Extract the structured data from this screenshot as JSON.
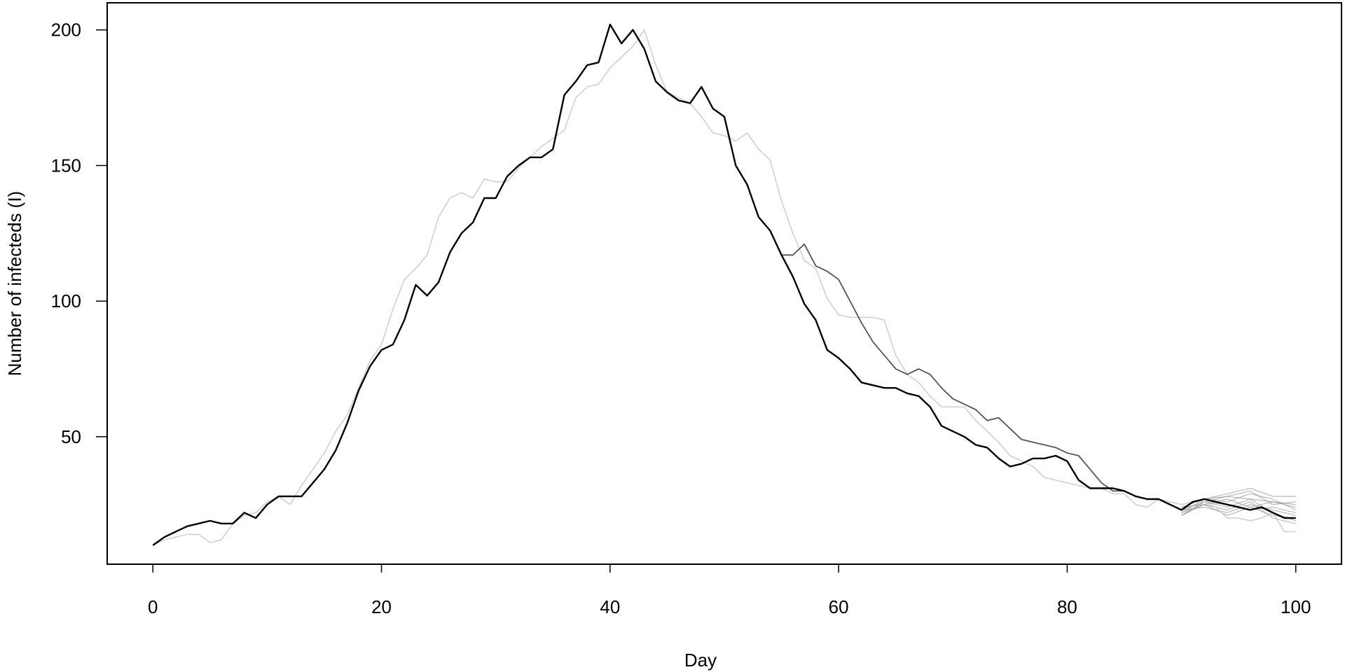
{
  "chart_data": {
    "type": "line",
    "title": "",
    "xlabel": "Day",
    "ylabel": "Number of infecteds (I)",
    "xlim": [
      -4,
      104
    ],
    "ylim": [
      3,
      210
    ],
    "xticks": [
      0,
      20,
      40,
      60,
      80,
      100
    ],
    "yticks": [
      50,
      100,
      150,
      200
    ],
    "grid": false,
    "legend": "none",
    "colors": {
      "main": "#000000",
      "light": "#d0d0d0",
      "mid": "#555555",
      "faint": "#9a9a9a"
    },
    "series": [
      {
        "style": "main",
        "x": [
          0,
          1,
          2,
          3,
          4,
          5,
          6,
          7,
          8,
          9,
          10,
          11,
          12,
          13,
          14,
          15,
          16,
          17,
          18,
          19,
          20,
          21,
          22,
          23,
          24,
          25,
          26,
          27,
          28,
          29,
          30,
          31,
          32,
          33,
          34,
          35,
          36,
          37,
          38,
          39,
          40,
          41,
          42,
          43,
          44,
          45,
          46,
          47,
          48,
          49,
          50,
          51,
          52,
          53,
          54,
          55,
          56,
          57,
          58,
          59,
          60,
          61,
          62,
          63,
          64,
          65,
          66,
          67,
          68,
          69,
          70,
          71,
          72,
          73,
          74,
          75,
          76,
          77,
          78,
          79,
          80,
          81,
          82,
          83,
          84,
          85,
          86,
          87,
          88,
          89,
          90,
          91,
          92,
          93,
          94,
          95,
          96,
          97,
          98,
          99,
          100
        ],
        "y": [
          10,
          13,
          15,
          17,
          18,
          19,
          18,
          18,
          22,
          20,
          25,
          28,
          28,
          28,
          33,
          38,
          45,
          55,
          67,
          76,
          82,
          84,
          93,
          106,
          102,
          107,
          118,
          125,
          129,
          138,
          138,
          146,
          150,
          153,
          153,
          156,
          176,
          181,
          187,
          188,
          202,
          195,
          200,
          193,
          181,
          177,
          174,
          173,
          179,
          171,
          168,
          150,
          143,
          131,
          126,
          117,
          109,
          99,
          93,
          82,
          79,
          75,
          70,
          69,
          68,
          68,
          66,
          65,
          61,
          54,
          52,
          50,
          47,
          46,
          42,
          39,
          40,
          42,
          42,
          43,
          41,
          34,
          31,
          31,
          31,
          30,
          28,
          27,
          27,
          25,
          23,
          26,
          27,
          26,
          25,
          24,
          23,
          24,
          22,
          20,
          20
        ]
      },
      {
        "style": "light",
        "x": [
          0,
          1,
          2,
          3,
          4,
          5,
          6,
          7,
          8,
          9,
          10,
          11,
          12,
          13,
          14,
          15,
          16,
          17,
          18,
          19,
          20,
          21,
          22,
          23,
          24,
          25,
          26,
          27,
          28,
          29,
          30,
          31,
          32,
          33,
          34,
          35,
          36,
          37,
          38,
          39,
          40,
          41,
          42,
          43,
          44,
          45,
          46,
          47,
          48,
          49,
          50,
          51,
          52,
          53,
          54,
          55,
          56,
          57,
          58,
          59,
          60,
          61,
          62,
          63,
          64,
          65,
          66,
          67,
          68,
          69,
          70,
          71,
          72,
          73,
          74,
          75,
          76,
          77,
          78,
          79,
          80,
          81,
          82,
          83,
          84,
          85,
          86,
          87,
          88,
          89,
          90,
          91,
          92,
          93,
          94,
          95,
          96,
          97,
          98,
          99,
          100
        ],
        "y": [
          10,
          12,
          13,
          14,
          14,
          11,
          12,
          18,
          21,
          22,
          26,
          28,
          25,
          32,
          38,
          44,
          52,
          58,
          68,
          78,
          84,
          97,
          108,
          112,
          117,
          131,
          138,
          140,
          138,
          145,
          144,
          144,
          149,
          153,
          157,
          160,
          163,
          175,
          179,
          180,
          186,
          190,
          194,
          200,
          187,
          177,
          175,
          173,
          168,
          162,
          161,
          159,
          162,
          156,
          152,
          137,
          125,
          115,
          112,
          101,
          95,
          94,
          94,
          94,
          93,
          80,
          73,
          70,
          65,
          61,
          61,
          61,
          56,
          52,
          48,
          43,
          41,
          39,
          35,
          34,
          33,
          32,
          31,
          31,
          29,
          29,
          25,
          24,
          27,
          26,
          25,
          26,
          26,
          24,
          20,
          20,
          19,
          20,
          22,
          15,
          15
        ]
      },
      {
        "style": "mid",
        "x": [
          55,
          56,
          57,
          58,
          59,
          60,
          61,
          62,
          63,
          64,
          65,
          66,
          67,
          68,
          69,
          70,
          71,
          72,
          73,
          74,
          75,
          76,
          77,
          78,
          79,
          80,
          81,
          82,
          83,
          84,
          85,
          86,
          87,
          88,
          89,
          90,
          91,
          92,
          93,
          94,
          95,
          96,
          97,
          98,
          99,
          100
        ],
        "y": [
          117,
          117,
          121,
          113,
          111,
          108,
          100,
          92,
          85,
          80,
          75,
          73,
          75,
          73,
          68,
          64,
          62,
          60,
          56,
          57,
          53,
          49,
          48,
          47,
          46,
          44,
          43,
          38,
          33,
          30,
          30,
          28,
          27,
          27,
          25,
          23,
          26,
          27,
          26,
          25,
          24,
          23,
          24,
          22,
          20,
          20
        ]
      },
      {
        "style": "faint",
        "x": [
          90,
          92,
          94,
          96,
          98,
          100
        ],
        "y": [
          21,
          26,
          28,
          27,
          26,
          24
        ]
      },
      {
        "style": "faint",
        "x": [
          90,
          92,
          94,
          96,
          98,
          100
        ],
        "y": [
          21,
          25,
          23,
          26,
          20,
          18
        ]
      },
      {
        "style": "faint",
        "x": [
          90,
          92,
          94,
          96,
          98,
          100
        ],
        "y": [
          22,
          27,
          29,
          31,
          28,
          28
        ]
      },
      {
        "style": "faint",
        "x": [
          90,
          92,
          94,
          96,
          98,
          100
        ],
        "y": [
          23,
          24,
          22,
          25,
          23,
          21
        ]
      },
      {
        "style": "faint",
        "x": [
          90,
          92,
          94,
          96,
          98,
          100
        ],
        "y": [
          24,
          25,
          27,
          24,
          26,
          25
        ]
      },
      {
        "style": "faint",
        "x": [
          90,
          92,
          94,
          96,
          98,
          100
        ],
        "y": [
          21,
          26,
          25,
          23,
          24,
          22
        ]
      },
      {
        "style": "faint",
        "x": [
          90,
          92,
          94,
          96,
          98,
          100
        ],
        "y": [
          24,
          27,
          26,
          29,
          27,
          23
        ]
      },
      {
        "style": "faint",
        "x": [
          90,
          92,
          94,
          96,
          98,
          100
        ],
        "y": [
          23,
          26,
          24,
          27,
          22,
          19
        ]
      },
      {
        "style": "faint",
        "x": [
          90,
          92,
          94,
          96,
          98,
          100
        ],
        "y": [
          25,
          27,
          28,
          30,
          25,
          26
        ]
      },
      {
        "style": "faint",
        "x": [
          90,
          92,
          94,
          96,
          98,
          100
        ],
        "y": [
          22,
          25,
          21,
          24,
          21,
          20
        ]
      }
    ]
  }
}
